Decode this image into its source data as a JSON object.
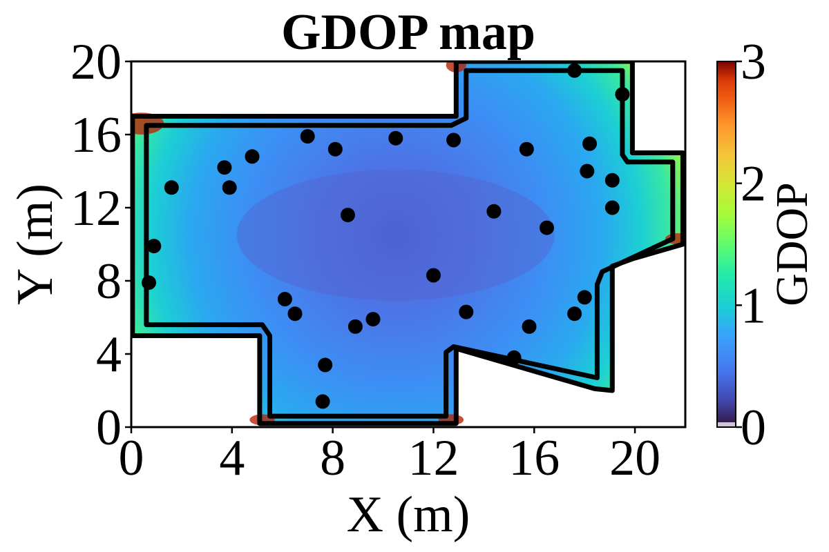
{
  "chart_data": {
    "type": "heatmap",
    "title": "GDOP map",
    "xlabel": "X (m)",
    "ylabel": "Y (m)",
    "xlim": [
      0,
      22
    ],
    "ylim": [
      0,
      20
    ],
    "xticks": [
      0,
      4,
      8,
      12,
      16,
      20
    ],
    "yticks": [
      0,
      4,
      8,
      12,
      16,
      20
    ],
    "xtick_labels": [
      "0",
      "4",
      "8",
      "12",
      "16",
      "20"
    ],
    "ytick_labels": [
      "0",
      "4",
      "8",
      "12",
      "16",
      "20"
    ],
    "colorbar": {
      "label": "GDOP",
      "min": 0,
      "max": 3,
      "ticks": [
        0,
        1,
        2,
        3
      ],
      "tick_labels": [
        "0",
        "1",
        "2",
        "3"
      ],
      "colormap": "turbo"
    },
    "boundary": [
      [
        0,
        0
      ],
      [
        0,
        0
      ],
      [
        0,
        0
      ]
    ],
    "outer_boundary": [
      [
        0.05,
        5.0
      ],
      [
        0.05,
        17.0
      ],
      [
        12.9,
        17.0
      ],
      [
        12.9,
        20.0
      ],
      [
        19.9,
        20.0
      ],
      [
        19.9,
        15.0
      ],
      [
        21.9,
        15.0
      ],
      [
        21.9,
        10.0
      ],
      [
        19.9,
        9.2
      ],
      [
        19.1,
        8.8
      ],
      [
        19.1,
        2.0
      ],
      [
        18.4,
        2.1
      ],
      [
        12.9,
        4.3
      ],
      [
        12.9,
        0.2
      ],
      [
        5.1,
        0.2
      ],
      [
        5.1,
        5.0
      ]
    ],
    "inner_boundary": [
      [
        0.6,
        5.6
      ],
      [
        0.6,
        16.5
      ],
      [
        12.7,
        16.5
      ],
      [
        13.3,
        16.9
      ],
      [
        13.3,
        19.5
      ],
      [
        19.5,
        19.5
      ],
      [
        19.5,
        14.9
      ],
      [
        19.7,
        14.5
      ],
      [
        21.5,
        14.5
      ],
      [
        21.5,
        10.3
      ],
      [
        18.7,
        8.5
      ],
      [
        18.5,
        7.8
      ],
      [
        18.5,
        2.7
      ],
      [
        12.8,
        4.4
      ],
      [
        12.5,
        4.1
      ],
      [
        12.5,
        0.6
      ],
      [
        5.5,
        0.6
      ],
      [
        5.5,
        5.0
      ],
      [
        5.2,
        5.6
      ]
    ],
    "anchors": {
      "x": [
        0.7,
        0.9,
        1.6,
        3.7,
        3.9,
        4.8,
        6.1,
        6.5,
        7.0,
        7.6,
        7.7,
        8.1,
        8.6,
        8.9,
        9.6,
        10.5,
        12.0,
        12.8,
        13.3,
        14.4,
        15.2,
        15.7,
        15.8,
        16.5,
        17.6,
        17.6,
        18.0,
        18.1,
        18.2,
        19.1,
        19.1,
        19.5
      ],
      "y": [
        7.9,
        9.9,
        13.1,
        14.2,
        13.1,
        14.8,
        7.0,
        6.2,
        15.9,
        1.4,
        3.4,
        15.2,
        11.6,
        5.5,
        5.9,
        15.8,
        8.3,
        15.7,
        6.3,
        11.8,
        3.8,
        15.2,
        5.5,
        10.9,
        6.2,
        19.5,
        7.1,
        14.0,
        15.5,
        13.5,
        12.0,
        18.2
      ]
    },
    "anchor_color": "#000000",
    "boundary_color": "#000000",
    "low_gdop_region_center": [
      10.5,
      10.5
    ],
    "grid": false
  }
}
